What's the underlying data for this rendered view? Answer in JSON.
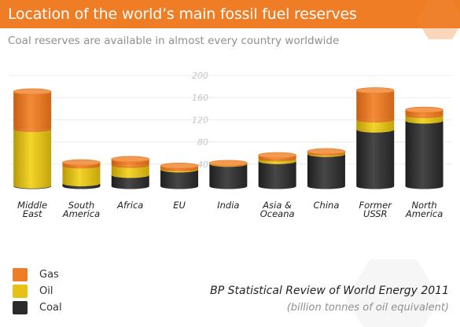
{
  "header": {
    "title": "Location of the world’s main fossil fuel reserves",
    "subtitle": "Coal reserves are available in almost every country worldwide"
  },
  "colors": {
    "accent": "#ee7d25",
    "gas": "#ee7d25",
    "oil": "#e6c116",
    "coal": "#2b2b2b"
  },
  "legend": {
    "items": [
      {
        "label": "Gas",
        "color": "#ee7d25"
      },
      {
        "label": "Oil",
        "color": "#e6c116"
      },
      {
        "label": "Coal",
        "color": "#2b2b2b"
      }
    ]
  },
  "footer": {
    "source": "BP Statistical Review of World Energy 2011",
    "units": "(billion tonnes of oil equivalent)"
  },
  "chart_data": {
    "type": "bar",
    "stacked": true,
    "title": "Location of the world’s main fossil fuel reserves",
    "subtitle": "Coal reserves are available in almost every country worldwide",
    "categories": [
      [
        "Middle",
        "East"
      ],
      [
        "South",
        "America"
      ],
      [
        "Africa"
      ],
      [
        "EU"
      ],
      [
        "India"
      ],
      [
        "Asia &",
        "Oceana"
      ],
      [
        "China"
      ],
      [
        "Former",
        "USSR"
      ],
      [
        "North",
        "America"
      ]
    ],
    "series": [
      {
        "name": "Coal",
        "values": [
          1,
          5,
          20,
          30,
          40,
          45,
          58,
          102,
          118
        ]
      },
      {
        "name": "Oil",
        "values": [
          102,
          32,
          18,
          2,
          1,
          5,
          2,
          18,
          10
        ]
      },
      {
        "name": "Gas",
        "values": [
          68,
          6,
          11,
          5,
          1,
          6,
          3,
          53,
          10
        ]
      }
    ],
    "ylim": [
      0,
      200
    ],
    "yticks": [
      "40",
      "80",
      "120",
      "160",
      "200"
    ],
    "units": "(billion tonnes of oil equivalent)",
    "legend_position": "bottom-left",
    "grid": true
  }
}
